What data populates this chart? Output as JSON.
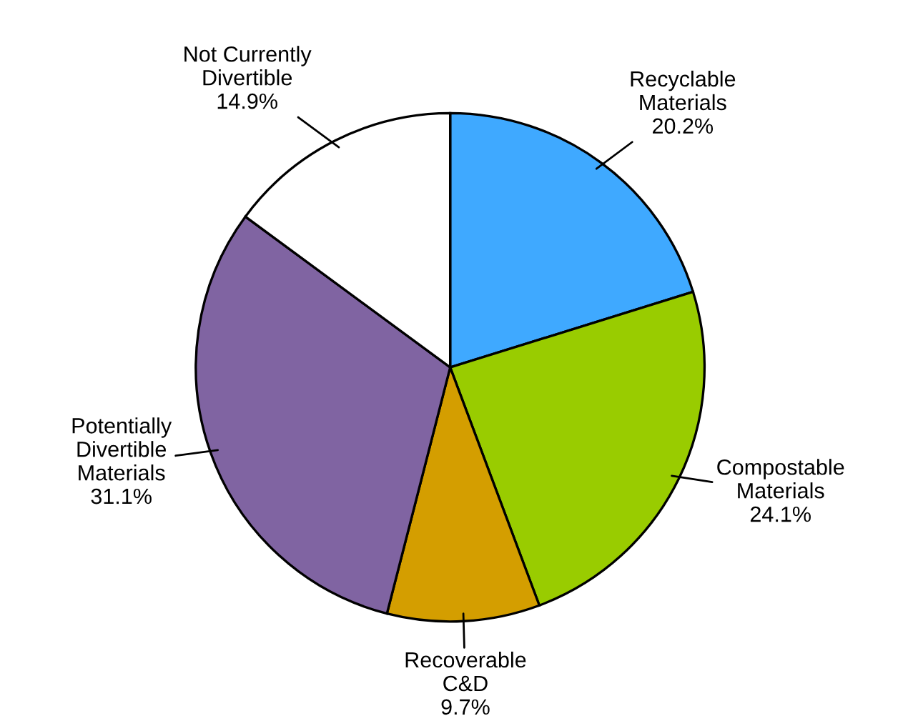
{
  "chart_data": {
    "type": "pie",
    "categories": [
      "Recyclable\nMaterials",
      "Compostable\nMaterials",
      "Recoverable\nC&D",
      "Potentially\nDivertible\nMaterials",
      "Not Currently\nDivertible"
    ],
    "values": [
      20.2,
      24.1,
      9.7,
      31.1,
      14.9
    ],
    "colors": [
      "#3fa9ff",
      "#99cc00",
      "#d49e00",
      "#8064a2",
      "#ffffff"
    ],
    "value_labels": [
      "20.2%",
      "24.1%",
      "9.7%",
      "31.1%",
      "14.9%"
    ]
  }
}
